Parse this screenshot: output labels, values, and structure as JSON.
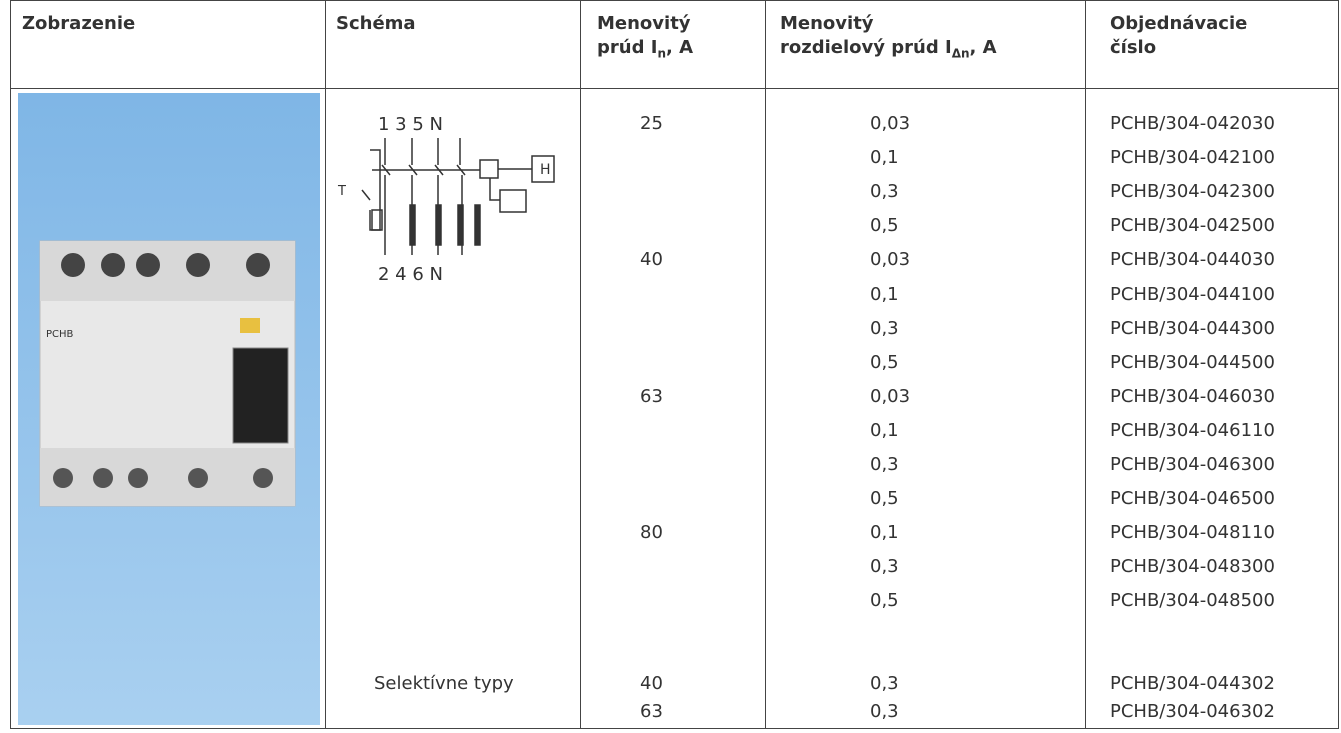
{
  "header": {
    "columns": [
      {
        "text": "Zobrazenie"
      },
      {
        "text": "Schéma"
      },
      {
        "lines": [
          "Menovitý",
          "prúd I"
        ],
        "sub": "n",
        "tail": ", A"
      },
      {
        "lines": [
          "Menovitý",
          "rozdielový prúd I"
        ],
        "sub": "Δn",
        "tail": ", A"
      },
      {
        "lines": [
          "Objednávacie",
          "číslo"
        ]
      }
    ]
  },
  "image": {
    "label": "PCHB"
  },
  "schema": {
    "top_labels": "1 3 5 N",
    "bottom_labels": "2 4 6 N",
    "switch_label": "T",
    "box_label": "H",
    "note": "Selektívne typy"
  },
  "rows": [
    {
      "current": 25,
      "residual": "0,03",
      "order": "PCHB/304-042030"
    },
    {
      "residual": "0,1",
      "order": "PCHB/304-042100"
    },
    {
      "residual": "0,3",
      "order": "PCHB/304-042300"
    },
    {
      "residual": "0,5",
      "order": "PCHB/304-042500"
    },
    {
      "current": 40,
      "residual": "0,03",
      "order": "PCHB/304-044030"
    },
    {
      "residual": "0,1",
      "order": "PCHB/304-044100"
    },
    {
      "residual": "0,3",
      "order": "PCHB/304-044300"
    },
    {
      "residual": "0,5",
      "order": "PCHB/304-044500"
    },
    {
      "current": 63,
      "residual": "0,03",
      "order": "PCHB/304-046030"
    },
    {
      "residual": "0,1",
      "order": "PCHB/304-046110"
    },
    {
      "residual": "0,3",
      "order": "PCHB/304-046300"
    },
    {
      "residual": "0,5",
      "order": "PCHB/304-046500"
    },
    {
      "current": 80,
      "residual": "0,1",
      "order": "PCHB/304-048110"
    },
    {
      "residual": "0,3",
      "order": "PCHB/304-048300"
    },
    {
      "residual": "0,5",
      "order": "PCHB/304-048500"
    },
    {
      "current": 40,
      "residual": "0,3",
      "order": "PCHB/304-044302"
    },
    {
      "current": 63,
      "residual": "0,3",
      "order": "PCHB/304-046302"
    }
  ]
}
